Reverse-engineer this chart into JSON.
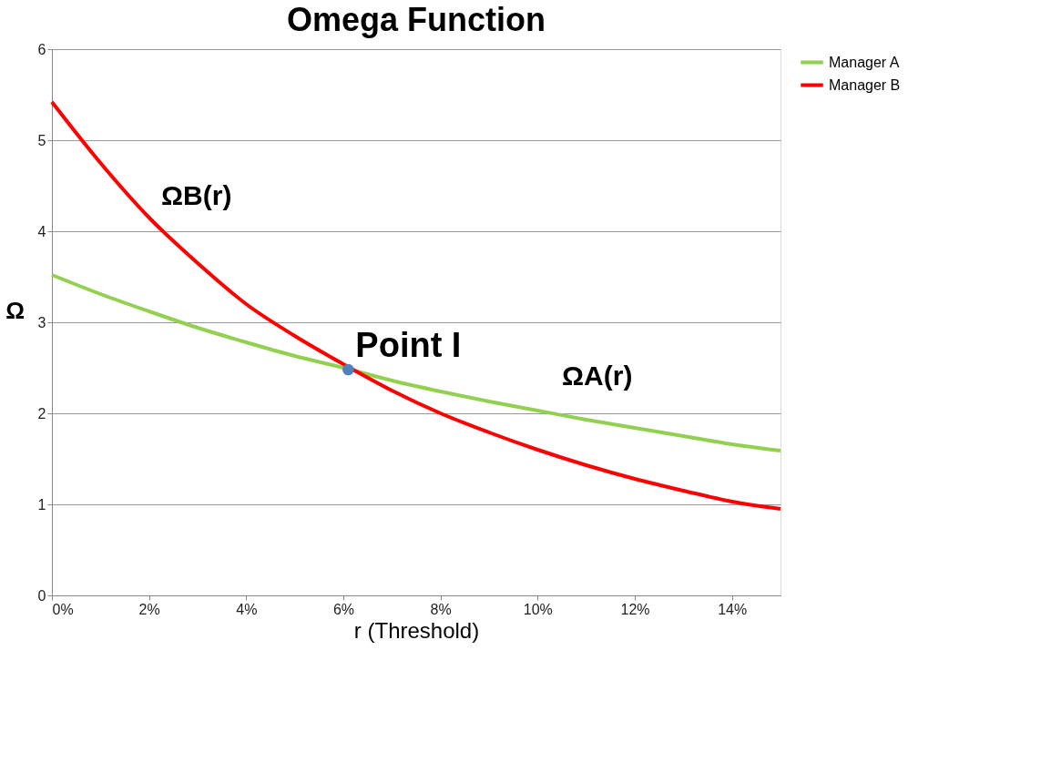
{
  "chart_data": {
    "type": "line",
    "title": "Omega Function",
    "xlabel": "r  (Threshold)",
    "ylabel": "Ω",
    "x": [
      0,
      1,
      2,
      3,
      4,
      5,
      6,
      7,
      8,
      9,
      10,
      11,
      12,
      13,
      14,
      15
    ],
    "series": [
      {
        "name": "Manager A",
        "color": "#92d050",
        "values": [
          3.52,
          3.31,
          3.12,
          2.94,
          2.78,
          2.63,
          2.5,
          2.36,
          2.24,
          2.13,
          2.03,
          1.93,
          1.84,
          1.75,
          1.66,
          1.59
        ]
      },
      {
        "name": "Manager B",
        "color": "#ff0000",
        "values": [
          5.42,
          4.75,
          4.15,
          3.65,
          3.2,
          2.85,
          2.54,
          2.25,
          2.0,
          1.79,
          1.6,
          1.43,
          1.28,
          1.15,
          1.03,
          0.95
        ]
      },
      {
        "type": "scatter",
        "color": "#4f81bd",
        "x": [
          6.1
        ],
        "values": [
          2.48
        ]
      }
    ],
    "xlim": [
      0,
      15
    ],
    "xticks": [
      {
        "value": 0,
        "label": "0%"
      },
      {
        "value": 2,
        "label": "2%"
      },
      {
        "value": 4,
        "label": "4%"
      },
      {
        "value": 6,
        "label": "6%"
      },
      {
        "value": 8,
        "label": "8%"
      },
      {
        "value": 10,
        "label": "10%"
      },
      {
        "value": 12,
        "label": "12%"
      },
      {
        "value": 14,
        "label": "14%"
      }
    ],
    "ylim": [
      0,
      6
    ],
    "yticks": [
      0,
      1,
      2,
      3,
      4,
      5,
      6
    ],
    "grid": "y",
    "legend": "right",
    "annotations": [
      {
        "text": "Point I",
        "x": 6.1,
        "y": 2.48
      },
      "ΩB(r)",
      "ΩA(r)"
    ]
  }
}
